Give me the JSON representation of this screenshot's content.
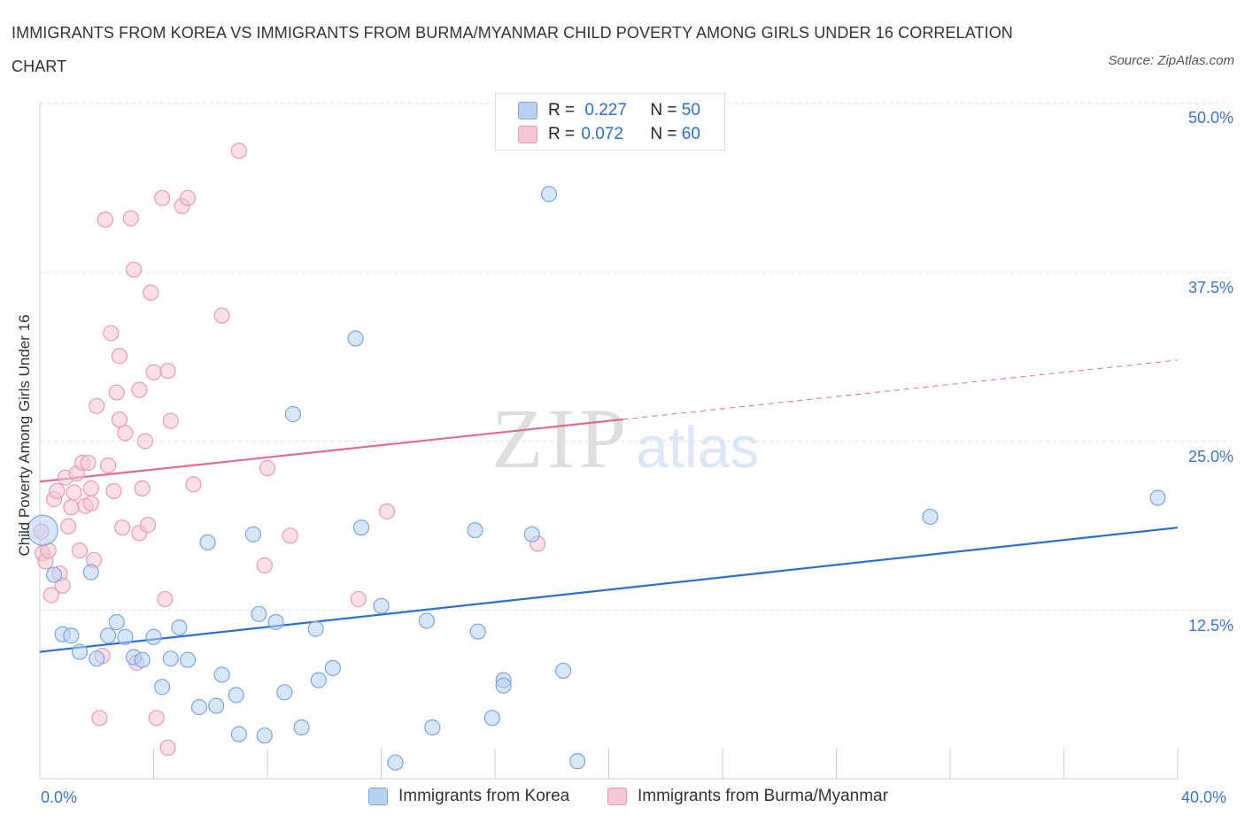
{
  "header": {
    "title": "IMMIGRANTS FROM KOREA VS IMMIGRANTS FROM BURMA/MYANMAR CHILD POVERTY AMONG GIRLS UNDER 16 CORRELATION CHART",
    "source": "Source: ZipAtlas.com"
  },
  "legend": {
    "korea": {
      "r_label": "R =",
      "r_value": "0.227",
      "n_label": "N =",
      "n_value": "50"
    },
    "burma": {
      "r_label": "R =",
      "r_value": "0.072",
      "n_label": "N =",
      "n_value": "60"
    }
  },
  "bottom_legend": {
    "korea": "Immigrants from Korea",
    "burma": "Immigrants from Burma/Myanmar"
  },
  "watermark": {
    "zip": "ZIP",
    "atlas": "atlas"
  },
  "colors": {
    "korea_fill": "#b8d2f5",
    "korea_stroke": "#7aa6e0",
    "korea_line": "#2c6fd1",
    "burma_fill": "#f8c6d6",
    "burma_stroke": "#e99ab5",
    "burma_line": "#e06b94",
    "tick_text": "#3d74c9",
    "grid": "#dddddd"
  },
  "chart_data": {
    "type": "scatter",
    "title": "IMMIGRANTS FROM KOREA VS IMMIGRANTS FROM BURMA/MYANMAR CHILD POVERTY AMONG GIRLS UNDER 16 CORRELATION CHART",
    "xlabel": "",
    "ylabel": "Child Poverty Among Girls Under 16",
    "xlim": [
      0,
      40
    ],
    "ylim": [
      0,
      50
    ],
    "x_tick_labels": [
      "0.0%",
      "40.0%"
    ],
    "y_ticks": [
      12.5,
      25.0,
      37.5,
      50.0
    ],
    "y_tick_labels": [
      "12.5%",
      "25.0%",
      "37.5%",
      "50.0%"
    ],
    "grid": true,
    "legend_position": "top-center",
    "series": [
      {
        "name": "Immigrants from Korea",
        "r": 0.227,
        "n": 50,
        "trend": {
          "x": [
            0,
            40
          ],
          "y": [
            9.4,
            18.6
          ],
          "dashed_from": null
        },
        "points": [
          [
            0.1,
            18.4
          ],
          [
            0.5,
            15.1
          ],
          [
            0.8,
            10.7
          ],
          [
            1.1,
            10.6
          ],
          [
            1.4,
            9.4
          ],
          [
            1.8,
            15.3
          ],
          [
            2.0,
            8.9
          ],
          [
            2.4,
            10.6
          ],
          [
            2.7,
            11.6
          ],
          [
            3.0,
            10.5
          ],
          [
            3.3,
            9.0
          ],
          [
            3.6,
            8.8
          ],
          [
            4.0,
            10.5
          ],
          [
            4.3,
            6.8
          ],
          [
            4.6,
            8.9
          ],
          [
            4.9,
            11.2
          ],
          [
            5.2,
            8.8
          ],
          [
            5.6,
            5.3
          ],
          [
            5.9,
            17.5
          ],
          [
            6.2,
            5.4
          ],
          [
            6.4,
            7.7
          ],
          [
            6.9,
            6.2
          ],
          [
            7.0,
            3.3
          ],
          [
            7.5,
            18.1
          ],
          [
            7.7,
            12.2
          ],
          [
            7.9,
            3.2
          ],
          [
            8.3,
            11.6
          ],
          [
            8.6,
            6.4
          ],
          [
            8.9,
            27.0
          ],
          [
            9.2,
            3.8
          ],
          [
            9.7,
            11.1
          ],
          [
            9.8,
            7.3
          ],
          [
            10.3,
            8.2
          ],
          [
            11.1,
            32.6
          ],
          [
            11.3,
            18.6
          ],
          [
            12.0,
            12.8
          ],
          [
            12.5,
            1.2
          ],
          [
            13.6,
            11.7
          ],
          [
            13.8,
            3.8
          ],
          [
            15.3,
            18.4
          ],
          [
            15.4,
            10.9
          ],
          [
            15.9,
            4.5
          ],
          [
            16.3,
            7.3
          ],
          [
            16.3,
            6.9
          ],
          [
            17.3,
            18.1
          ],
          [
            17.9,
            43.3
          ],
          [
            18.4,
            8.0
          ],
          [
            18.9,
            1.3
          ],
          [
            31.3,
            19.4
          ],
          [
            39.3,
            20.8
          ]
        ]
      },
      {
        "name": "Immigrants from Burma/Myanmar",
        "r": 0.072,
        "n": 60,
        "trend": {
          "x": [
            0,
            40
          ],
          "y": [
            22.0,
            31.0
          ],
          "dashed_from": 20.5
        },
        "points": [
          [
            0.1,
            16.7
          ],
          [
            0.2,
            16.1
          ],
          [
            0.3,
            16.9
          ],
          [
            0.4,
            13.6
          ],
          [
            0.5,
            20.7
          ],
          [
            0.6,
            21.3
          ],
          [
            0.7,
            15.2
          ],
          [
            0.8,
            14.3
          ],
          [
            0.9,
            22.3
          ],
          [
            1.0,
            18.7
          ],
          [
            1.1,
            20.1
          ],
          [
            1.2,
            21.2
          ],
          [
            1.3,
            22.6
          ],
          [
            1.4,
            16.9
          ],
          [
            1.5,
            23.4
          ],
          [
            1.6,
            20.2
          ],
          [
            1.7,
            23.4
          ],
          [
            1.8,
            20.4
          ],
          [
            1.8,
            21.5
          ],
          [
            1.9,
            16.2
          ],
          [
            2.0,
            27.6
          ],
          [
            2.1,
            4.5
          ],
          [
            2.2,
            9.1
          ],
          [
            2.3,
            41.4
          ],
          [
            2.4,
            23.2
          ],
          [
            2.5,
            33.0
          ],
          [
            2.6,
            21.3
          ],
          [
            2.7,
            28.6
          ],
          [
            2.8,
            26.6
          ],
          [
            2.8,
            31.3
          ],
          [
            2.9,
            18.6
          ],
          [
            3.0,
            25.6
          ],
          [
            3.2,
            41.5
          ],
          [
            3.3,
            37.7
          ],
          [
            3.4,
            8.6
          ],
          [
            3.5,
            18.2
          ],
          [
            3.5,
            28.8
          ],
          [
            3.6,
            21.5
          ],
          [
            3.7,
            25.0
          ],
          [
            3.8,
            18.8
          ],
          [
            3.9,
            36.0
          ],
          [
            4.0,
            30.1
          ],
          [
            4.1,
            4.5
          ],
          [
            4.3,
            43.0
          ],
          [
            4.4,
            13.3
          ],
          [
            4.5,
            2.3
          ],
          [
            4.5,
            30.2
          ],
          [
            4.6,
            26.5
          ],
          [
            5.0,
            42.4
          ],
          [
            5.2,
            43.0
          ],
          [
            5.4,
            21.8
          ],
          [
            6.4,
            34.3
          ],
          [
            7.0,
            46.5
          ],
          [
            7.9,
            15.8
          ],
          [
            8.0,
            23.0
          ],
          [
            8.8,
            18.0
          ],
          [
            11.2,
            13.3
          ],
          [
            12.2,
            19.8
          ],
          [
            17.5,
            17.4
          ],
          [
            0.05,
            18.3
          ]
        ]
      }
    ]
  }
}
